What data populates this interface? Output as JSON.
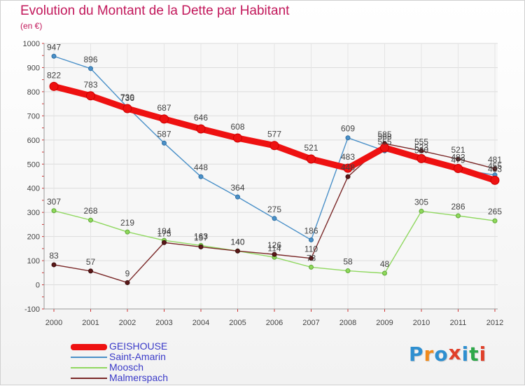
{
  "chart_data": {
    "type": "line",
    "title": "Evolution du Montant de la Dette par Habitant",
    "subtitle": "(en €)",
    "categories": [
      "2000",
      "2001",
      "2002",
      "2003",
      "2004",
      "2005",
      "2006",
      "2007",
      "2008",
      "2009",
      "2010",
      "2011",
      "2012"
    ],
    "ylim": [
      -100,
      1000
    ],
    "yticks": [
      -100,
      0,
      100,
      200,
      300,
      400,
      500,
      600,
      700,
      800,
      900,
      1000
    ],
    "grid": true,
    "legend_position": "bottom-left",
    "series": [
      {
        "name": "GEISHOUSE",
        "color": "#ee1111",
        "values": [
          822,
          783,
          730,
          687,
          646,
          608,
          577,
          521,
          483,
          568,
          523,
          482,
          433
        ],
        "labels": [
          "822",
          "783",
          "730",
          "687",
          "646",
          "608",
          "577",
          "521",
          "483",
          "568",
          "523",
          "482",
          "433"
        ]
      },
      {
        "name": "Saint-Amarin",
        "color": "#4a90c8",
        "values": [
          947,
          896,
          736,
          587,
          448,
          364,
          275,
          186,
          609,
          555,
          520,
          479,
          455
        ],
        "labels": [
          "947",
          "896",
          "736",
          "587",
          "448",
          "364",
          "275",
          "186",
          "609",
          "555",
          "520",
          "479",
          "455"
        ]
      },
      {
        "name": "Moosch",
        "color": "#90d860",
        "values": [
          307,
          268,
          219,
          184,
          163,
          140,
          114,
          73,
          58,
          48,
          305,
          286,
          265
        ],
        "labels": [
          "307",
          "268",
          "219",
          "184",
          "163",
          "140",
          "114",
          "73",
          "58",
          "48",
          "305",
          "286",
          "265"
        ]
      },
      {
        "name": "Malmerspach",
        "color": "#7a2828",
        "values": [
          83,
          57,
          9,
          175,
          157,
          140,
          126,
          110,
          448,
          585,
          555,
          521,
          481
        ],
        "labels": [
          "83",
          "57",
          "9",
          "175",
          "157",
          "140",
          "126",
          "110",
          "448",
          "585",
          "555",
          "521",
          "481"
        ]
      }
    ]
  },
  "legend": [
    {
      "label": "GEISHOUSE",
      "color": "#ee1111",
      "thickness": 9
    },
    {
      "label": "Saint-Amarin",
      "color": "#4a90c8",
      "thickness": 2
    },
    {
      "label": "Moosch",
      "color": "#90d860",
      "thickness": 2
    },
    {
      "label": "Malmerspach",
      "color": "#7a2828",
      "thickness": 2
    }
  ],
  "logo": {
    "letters": [
      "P",
      "r",
      "o",
      "x",
      "i",
      "t",
      "i"
    ],
    "colors": [
      "#2e8fd0",
      "#f08a1c",
      "#2e8fd0",
      "#e0402a",
      "#2e8fd0",
      "#2ea84a",
      "#e0402a"
    ]
  }
}
